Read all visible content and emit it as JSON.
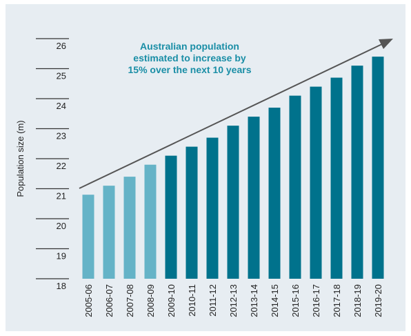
{
  "chart_data": {
    "type": "bar",
    "annotation": [
      "Australian population",
      "estimated to increase by",
      "15% over the next 10 years"
    ],
    "y_label": "Population size (m)",
    "categories": [
      "2005-06",
      "2006-07",
      "2007-08",
      "2008-09",
      "2009-10",
      "2010-11",
      "2011-12",
      "2012-13",
      "2013-14",
      "2014-15",
      "2015-16",
      "2016-17",
      "2017-18",
      "2018-19",
      "2019-20"
    ],
    "values": [
      20.8,
      21.1,
      21.4,
      21.8,
      22.1,
      22.4,
      22.7,
      23.1,
      23.4,
      23.7,
      24.1,
      24.4,
      24.7,
      25.1,
      25.4
    ],
    "colors": [
      "#65b3c7",
      "#65b3c7",
      "#65b3c7",
      "#65b3c7",
      "#00728c",
      "#00728c",
      "#00728c",
      "#00728c",
      "#00728c",
      "#00728c",
      "#00728c",
      "#00728c",
      "#00728c",
      "#00728c",
      "#00728c"
    ],
    "ylim": [
      18,
      26
    ],
    "yticks": [
      18,
      19,
      20,
      21,
      22,
      23,
      24,
      25,
      26
    ]
  }
}
